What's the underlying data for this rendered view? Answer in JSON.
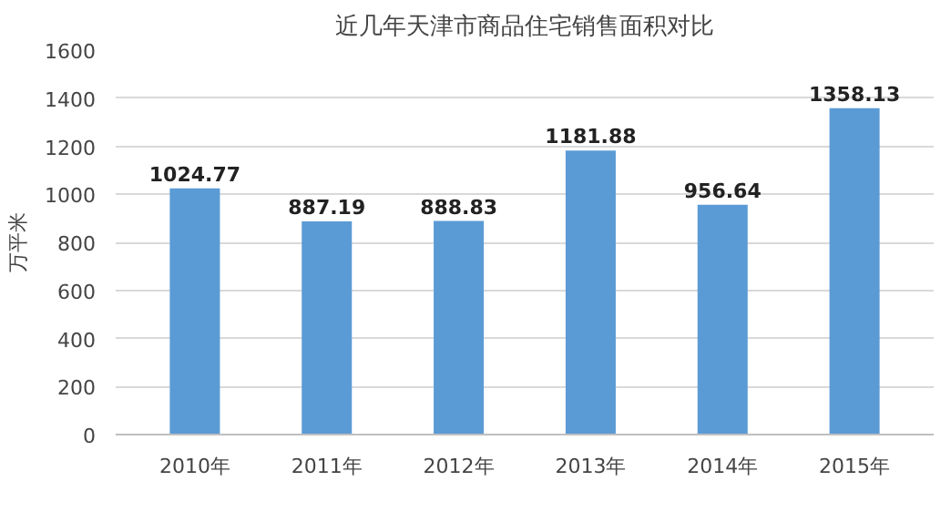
{
  "chart_data": {
    "type": "bar",
    "title": "近几年天津市商品住宅销售面积对比",
    "ylabel": "万平米",
    "categories": [
      "2010年",
      "2011年",
      "2012年",
      "2013年",
      "2014年",
      "2015年"
    ],
    "values": [
      1024.77,
      887.19,
      888.83,
      1181.88,
      956.64,
      1358.13
    ],
    "color": "#5b9bd5",
    "ylim": [
      0,
      1600
    ],
    "yticks": [
      0,
      200,
      400,
      600,
      800,
      1000,
      1200,
      1400,
      1600
    ],
    "grid": "y",
    "data_labels": true
  }
}
